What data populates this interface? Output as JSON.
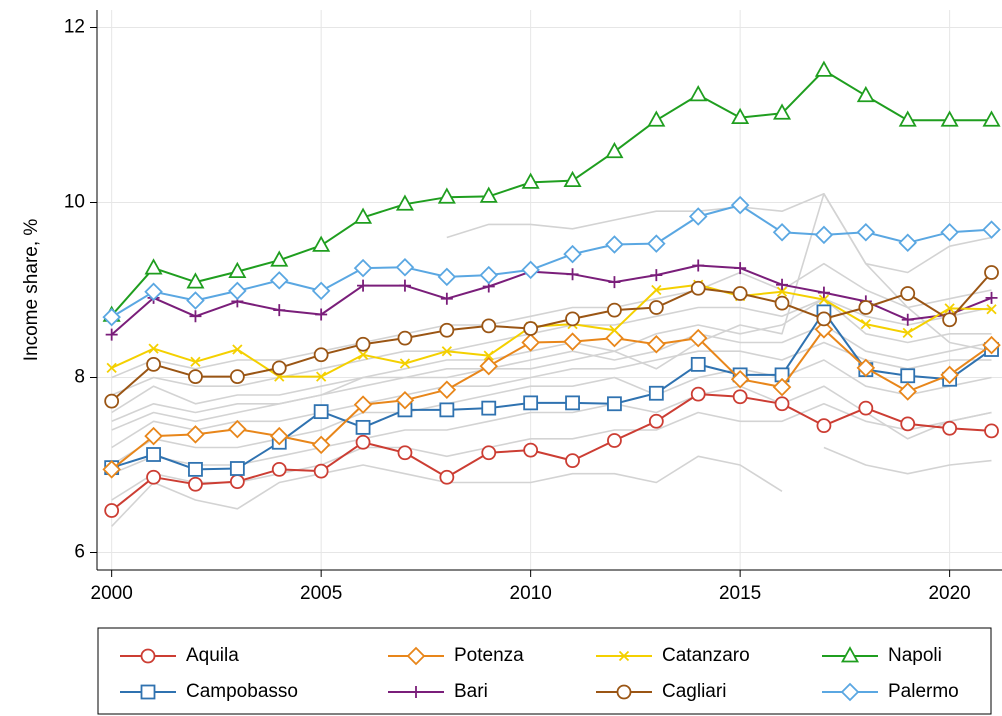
{
  "chart_data": {
    "type": "line",
    "y_label": "Income share, %",
    "x": [
      2000,
      2001,
      2002,
      2003,
      2004,
      2005,
      2006,
      2007,
      2008,
      2009,
      2010,
      2011,
      2012,
      2013,
      2014,
      2015,
      2016,
      2017,
      2018,
      2019,
      2020,
      2021
    ],
    "xlim": [
      1999.65,
      2021.25
    ],
    "xticks": [
      2000,
      2005,
      2010,
      2015,
      2020
    ],
    "ylim": [
      5.8,
      12.2
    ],
    "yticks": [
      6,
      8,
      10,
      12
    ],
    "grid": true,
    "legend": "bottom",
    "background_series": {
      "color": "#d3d3d3",
      "series": [
        {
          "values": [
            7.4,
            7.6,
            7.5,
            7.6,
            7.7,
            7.8,
            7.9,
            8.0,
            8.1,
            8.1,
            8.2,
            8.3,
            8.2,
            8.3,
            8.5,
            8.4,
            8.4,
            8.6,
            8.3,
            8.2,
            8.3,
            8.4
          ]
        },
        {
          "values": [
            7.0,
            7.3,
            7.2,
            7.2,
            7.3,
            7.4,
            7.6,
            7.6,
            7.7,
            7.8,
            7.9,
            7.9,
            8.0,
            7.8,
            8.0,
            8.1,
            8.0,
            8.2,
            7.9,
            7.8,
            7.9,
            8.0
          ]
        },
        {
          "values": [
            7.8,
            8.0,
            7.9,
            7.9,
            8.0,
            8.1,
            8.2,
            8.3,
            8.3,
            8.4,
            8.5,
            8.6,
            8.6,
            8.7,
            8.8,
            8.8,
            8.7,
            8.9,
            8.7,
            8.6,
            8.7,
            8.8
          ]
        },
        {
          "values": [
            6.6,
            6.9,
            6.8,
            6.8,
            6.9,
            7.0,
            7.2,
            7.2,
            7.1,
            7.2,
            7.3,
            7.3,
            7.4,
            7.4,
            7.6,
            7.5,
            7.5,
            7.7,
            7.5,
            7.4,
            7.5,
            7.6
          ]
        },
        {
          "values": [
            7.2,
            7.5,
            7.4,
            7.5,
            7.5,
            7.6,
            7.7,
            7.8,
            7.9,
            7.9,
            8.0,
            8.1,
            8.1,
            8.2,
            8.3,
            8.3,
            8.2,
            8.4,
            8.2,
            8.1,
            8.2,
            8.2
          ]
        },
        {
          "values": [
            null,
            null,
            null,
            null,
            null,
            null,
            null,
            null,
            9.6,
            9.75,
            9.75,
            9.7,
            9.8,
            9.9,
            9.9,
            9.95,
            9.9,
            10.1,
            9.3,
            9.2,
            9.5,
            9.6
          ]
        },
        {
          "values": [
            6.3,
            6.8,
            6.6,
            6.5,
            6.8,
            6.9,
            7.0,
            6.9,
            6.8,
            6.8,
            6.8,
            6.9,
            6.9,
            6.8,
            7.1,
            7.0,
            6.7,
            null,
            null,
            null,
            null,
            null
          ]
        },
        {
          "values": [
            null,
            null,
            null,
            null,
            null,
            null,
            null,
            null,
            null,
            null,
            null,
            null,
            null,
            null,
            null,
            null,
            null,
            7.2,
            7.0,
            6.9,
            7.0,
            7.05
          ]
        },
        {
          "values": [
            7.6,
            7.9,
            7.7,
            7.8,
            7.8,
            7.9,
            8.0,
            8.1,
            8.2,
            8.2,
            8.3,
            8.4,
            8.3,
            8.5,
            8.6,
            8.5,
            8.6,
            8.9,
            8.5,
            8.4,
            8.5,
            8.5
          ]
        },
        {
          "values": [
            8.0,
            8.2,
            8.1,
            8.2,
            8.2,
            8.3,
            8.4,
            8.5,
            8.6,
            8.6,
            8.7,
            8.8,
            8.8,
            8.9,
            9.0,
            9.2,
            9.0,
            9.3,
            9.0,
            8.8,
            8.9,
            9.0
          ]
        },
        {
          "values": [
            7.5,
            7.7,
            7.6,
            7.7,
            7.7,
            7.8,
            8.0,
            8.0,
            8.0,
            8.1,
            8.1,
            8.2,
            8.3,
            8.1,
            8.4,
            8.6,
            8.5,
            10.1,
            9.3,
            8.8,
            8.4,
            8.3
          ]
        },
        {
          "values": [
            6.9,
            7.1,
            7.0,
            7.0,
            7.1,
            7.2,
            7.3,
            7.4,
            7.4,
            7.5,
            7.6,
            7.6,
            7.7,
            7.6,
            7.8,
            7.9,
            7.7,
            7.9,
            7.6,
            7.3,
            7.5,
            7.6
          ]
        }
      ]
    },
    "series": [
      {
        "name": "Aquila",
        "color": "#cc3d33",
        "marker": "circle",
        "values": [
          6.48,
          6.86,
          6.78,
          6.81,
          6.95,
          6.93,
          7.26,
          7.14,
          6.86,
          7.14,
          7.17,
          7.05,
          7.28,
          7.5,
          7.81,
          7.78,
          7.7,
          7.45,
          7.65,
          7.47,
          7.42,
          7.39
        ]
      },
      {
        "name": "Campobasso",
        "color": "#2f72b0",
        "marker": "square",
        "values": [
          6.97,
          7.12,
          6.95,
          6.96,
          7.26,
          7.61,
          7.43,
          7.63,
          7.63,
          7.65,
          7.71,
          7.71,
          7.7,
          7.82,
          8.15,
          8.03,
          8.03,
          8.75,
          8.09,
          8.02,
          7.98,
          8.32
        ]
      },
      {
        "name": "Potenza",
        "color": "#e8861a",
        "marker": "diamond",
        "values": [
          6.95,
          7.33,
          7.35,
          7.41,
          7.33,
          7.23,
          7.69,
          7.74,
          7.86,
          8.13,
          8.4,
          8.41,
          8.45,
          8.38,
          8.45,
          7.98,
          7.89,
          8.55,
          8.11,
          7.84,
          8.03,
          8.37
        ]
      },
      {
        "name": "Bari",
        "color": "#7a1e7a",
        "marker": "plus",
        "values": [
          8.49,
          8.91,
          8.7,
          8.87,
          8.77,
          8.72,
          9.05,
          9.05,
          8.9,
          9.04,
          9.21,
          9.18,
          9.09,
          9.17,
          9.28,
          9.25,
          9.06,
          8.97,
          8.87,
          8.66,
          8.72,
          8.91
        ]
      },
      {
        "name": "Catanzaro",
        "color": "#f4d000",
        "marker": "cross",
        "values": [
          8.11,
          8.33,
          8.18,
          8.32,
          8.01,
          8.01,
          8.26,
          8.16,
          8.3,
          8.25,
          8.58,
          8.61,
          8.54,
          9.0,
          9.06,
          8.93,
          8.98,
          8.89,
          8.61,
          8.51,
          8.79,
          8.78
        ]
      },
      {
        "name": "Cagliari",
        "color": "#9a5514",
        "marker": "circle",
        "values": [
          7.73,
          8.15,
          8.01,
          8.01,
          8.11,
          8.26,
          8.38,
          8.45,
          8.54,
          8.59,
          8.56,
          8.67,
          8.77,
          8.8,
          9.02,
          8.96,
          8.85,
          8.67,
          8.8,
          8.96,
          8.66,
          9.2
        ]
      },
      {
        "name": "Napoli",
        "color": "#1f9e1f",
        "marker": "triangle",
        "values": [
          8.71,
          9.25,
          9.09,
          9.21,
          9.34,
          9.51,
          9.83,
          9.98,
          10.06,
          10.07,
          10.23,
          10.25,
          10.58,
          10.94,
          11.23,
          10.97,
          11.02,
          11.51,
          11.22,
          10.94,
          10.94,
          10.94
        ]
      },
      {
        "name": "Palermo",
        "color": "#5aa7e2",
        "marker": "diamond",
        "values": [
          8.69,
          8.98,
          8.88,
          8.99,
          9.11,
          8.99,
          9.25,
          9.26,
          9.15,
          9.17,
          9.23,
          9.41,
          9.52,
          9.53,
          9.84,
          9.97,
          9.66,
          9.63,
          9.66,
          9.54,
          9.66,
          9.69
        ]
      }
    ]
  }
}
